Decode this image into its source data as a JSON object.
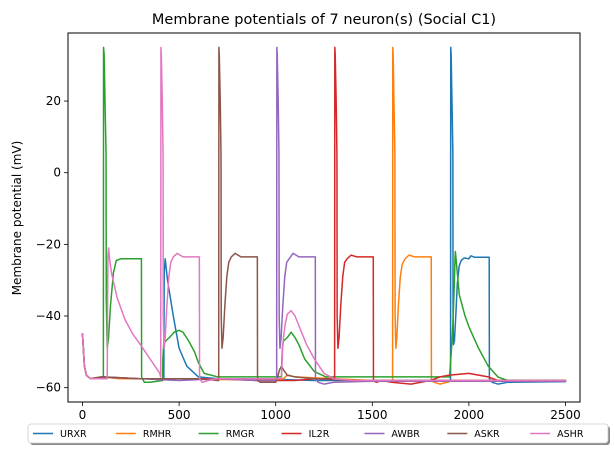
{
  "chart_data": {
    "type": "line",
    "title": "Membrane potentials of 7 neuron(s) (Social C1)",
    "xlabel": "",
    "ylabel": "Membrane potential (mV)",
    "xlim": [
      -75,
      2575
    ],
    "ylim": [
      -64,
      39
    ],
    "x_ticks": [
      0,
      500,
      1000,
      1500,
      2000,
      2500
    ],
    "y_ticks": [
      -60,
      -40,
      -20,
      0,
      20
    ],
    "legend_position": "below",
    "series": [
      {
        "name": "URXR",
        "color": "#1f77b4",
        "points": [
          [
            0,
            -45
          ],
          [
            10,
            -54
          ],
          [
            20,
            -56.5
          ],
          [
            40,
            -57.5
          ],
          [
            60,
            -57.5
          ],
          [
            100,
            -57
          ],
          [
            200,
            -57.5
          ],
          [
            400,
            -57.5
          ],
          [
            421,
            -57.5
          ],
          [
            423,
            -28
          ],
          [
            428,
            -24
          ],
          [
            440,
            -30
          ],
          [
            470,
            -40
          ],
          [
            500,
            -49
          ],
          [
            540,
            -54
          ],
          [
            600,
            -57
          ],
          [
            700,
            -57.5
          ],
          [
            900,
            -57.5
          ],
          [
            1200,
            -58
          ],
          [
            1600,
            -58
          ],
          [
            1900,
            -58
          ],
          [
            1905,
            -58
          ],
          [
            1906,
            35
          ],
          [
            1908,
            33
          ],
          [
            1914,
            15
          ],
          [
            1917,
            5
          ],
          [
            1918,
            -40
          ],
          [
            1920,
            -48
          ],
          [
            1925,
            -47
          ],
          [
            1932,
            -40
          ],
          [
            1940,
            -31
          ],
          [
            1950,
            -26
          ],
          [
            1960,
            -24.5
          ],
          [
            1975,
            -23.8
          ],
          [
            2000,
            -24
          ],
          [
            2010,
            -23.2
          ],
          [
            2030,
            -23.6
          ],
          [
            2105,
            -23.6
          ],
          [
            2106,
            -57.5
          ],
          [
            2120,
            -58.5
          ],
          [
            2150,
            -59
          ],
          [
            2200,
            -58.5
          ],
          [
            2500,
            -58.3
          ]
        ]
      },
      {
        "name": "RMHR",
        "color": "#ff7f0e",
        "points": [
          [
            0,
            -45
          ],
          [
            10,
            -54
          ],
          [
            20,
            -56.5
          ],
          [
            40,
            -57.5
          ],
          [
            100,
            -57
          ],
          [
            200,
            -57.5
          ],
          [
            500,
            -57.5
          ],
          [
            1000,
            -58
          ],
          [
            1040,
            -57.5
          ],
          [
            1060,
            -56.5
          ],
          [
            1100,
            -57
          ],
          [
            1300,
            -57.5
          ],
          [
            1500,
            -58
          ],
          [
            1600,
            -58
          ],
          [
            1605,
            -58
          ],
          [
            1606,
            35
          ],
          [
            1608,
            33
          ],
          [
            1612,
            20
          ],
          [
            1617,
            5
          ],
          [
            1618,
            -40
          ],
          [
            1622,
            -49
          ],
          [
            1627,
            -46
          ],
          [
            1635,
            -37
          ],
          [
            1645,
            -29
          ],
          [
            1655,
            -25.5
          ],
          [
            1670,
            -24
          ],
          [
            1690,
            -23
          ],
          [
            1720,
            -23.5
          ],
          [
            1805,
            -23.5
          ],
          [
            1806,
            -58
          ],
          [
            1820,
            -58.5
          ],
          [
            1850,
            -59
          ],
          [
            1920,
            -58
          ],
          [
            2000,
            -58
          ],
          [
            2500,
            -58
          ]
        ]
      },
      {
        "name": "RMGR",
        "color": "#2ca02c",
        "points": [
          [
            0,
            -45
          ],
          [
            10,
            -54
          ],
          [
            20,
            -56.5
          ],
          [
            40,
            -57.5
          ],
          [
            80,
            -57.5
          ],
          [
            108,
            -57.5
          ],
          [
            109,
            35
          ],
          [
            112,
            33
          ],
          [
            118,
            16
          ],
          [
            122,
            5
          ],
          [
            123,
            -35
          ],
          [
            128,
            -49
          ],
          [
            135,
            -46
          ],
          [
            145,
            -37
          ],
          [
            160,
            -28
          ],
          [
            175,
            -24.5
          ],
          [
            200,
            -24
          ],
          [
            240,
            -24
          ],
          [
            305,
            -24
          ],
          [
            306,
            -57
          ],
          [
            320,
            -58.5
          ],
          [
            350,
            -58.5
          ],
          [
            415,
            -58
          ],
          [
            416,
            -52
          ],
          [
            420,
            -48
          ],
          [
            430,
            -47
          ],
          [
            450,
            -46
          ],
          [
            475,
            -44.5
          ],
          [
            500,
            -44
          ],
          [
            520,
            -44.5
          ],
          [
            550,
            -47
          ],
          [
            580,
            -50
          ],
          [
            600,
            -53
          ],
          [
            630,
            -56
          ],
          [
            700,
            -57
          ],
          [
            900,
            -57
          ],
          [
            1000,
            -57
          ],
          [
            1030,
            -57
          ],
          [
            1032,
            -52
          ],
          [
            1036,
            -48
          ],
          [
            1040,
            -47
          ],
          [
            1060,
            -46
          ],
          [
            1080,
            -44.5
          ],
          [
            1100,
            -46
          ],
          [
            1120,
            -48
          ],
          [
            1150,
            -52
          ],
          [
            1200,
            -55.5
          ],
          [
            1260,
            -57
          ],
          [
            1300,
            -57
          ],
          [
            1330,
            -57
          ],
          [
            1400,
            -57
          ],
          [
            1600,
            -57
          ],
          [
            1700,
            -57
          ],
          [
            1800,
            -57
          ],
          [
            1900,
            -57
          ],
          [
            1915,
            -45
          ],
          [
            1920,
            -38
          ],
          [
            1925,
            -30
          ],
          [
            1928,
            -24
          ],
          [
            1930,
            -22
          ],
          [
            1935,
            -25
          ],
          [
            1950,
            -34
          ],
          [
            1980,
            -40
          ],
          [
            2000,
            -43
          ],
          [
            2050,
            -49
          ],
          [
            2100,
            -54
          ],
          [
            2150,
            -57
          ],
          [
            2200,
            -58
          ],
          [
            2500,
            -58
          ]
        ]
      },
      {
        "name": "IL2R",
        "color": "#d62728",
        "points": [
          [
            0,
            -45
          ],
          [
            10,
            -54
          ],
          [
            20,
            -56.5
          ],
          [
            40,
            -57.5
          ],
          [
            100,
            -57
          ],
          [
            300,
            -57.5
          ],
          [
            500,
            -57.5
          ],
          [
            700,
            -57.5
          ],
          [
            900,
            -58
          ],
          [
            1000,
            -58
          ],
          [
            1100,
            -58
          ],
          [
            1200,
            -57.5
          ],
          [
            1300,
            -57.5
          ],
          [
            1305,
            -57.5
          ],
          [
            1306,
            35
          ],
          [
            1308,
            33
          ],
          [
            1313,
            20
          ],
          [
            1317,
            5
          ],
          [
            1318,
            -40
          ],
          [
            1322,
            -49
          ],
          [
            1328,
            -46
          ],
          [
            1337,
            -37
          ],
          [
            1347,
            -29
          ],
          [
            1357,
            -25
          ],
          [
            1370,
            -24
          ],
          [
            1390,
            -23
          ],
          [
            1420,
            -23.5
          ],
          [
            1505,
            -23.5
          ],
          [
            1506,
            -58
          ],
          [
            1520,
            -58.5
          ],
          [
            1550,
            -58
          ],
          [
            1600,
            -58.5
          ],
          [
            1700,
            -59
          ],
          [
            1800,
            -58
          ],
          [
            1850,
            -57
          ],
          [
            1900,
            -56.5
          ],
          [
            2000,
            -56
          ],
          [
            2050,
            -56.5
          ],
          [
            2100,
            -57
          ],
          [
            2150,
            -58
          ],
          [
            2500,
            -58
          ]
        ]
      },
      {
        "name": "AWBR",
        "color": "#9467bd",
        "points": [
          [
            0,
            -45
          ],
          [
            10,
            -54
          ],
          [
            20,
            -56.5
          ],
          [
            40,
            -57.5
          ],
          [
            100,
            -57
          ],
          [
            300,
            -57.5
          ],
          [
            500,
            -58
          ],
          [
            700,
            -57.5
          ],
          [
            900,
            -58
          ],
          [
            1000,
            -58
          ],
          [
            1005,
            -58
          ],
          [
            1006,
            35
          ],
          [
            1008,
            33
          ],
          [
            1013,
            20
          ],
          [
            1017,
            5
          ],
          [
            1018,
            -40
          ],
          [
            1022,
            -49
          ],
          [
            1028,
            -46
          ],
          [
            1037,
            -37
          ],
          [
            1047,
            -29
          ],
          [
            1057,
            -25
          ],
          [
            1070,
            -24
          ],
          [
            1090,
            -22.5
          ],
          [
            1120,
            -23.5
          ],
          [
            1205,
            -23.5
          ],
          [
            1206,
            -57.5
          ],
          [
            1220,
            -58.5
          ],
          [
            1250,
            -59
          ],
          [
            1300,
            -58.5
          ],
          [
            1500,
            -58.2
          ],
          [
            2500,
            -58.2
          ]
        ]
      },
      {
        "name": "ASKR",
        "color": "#8c564b",
        "points": [
          [
            0,
            -45
          ],
          [
            10,
            -54
          ],
          [
            20,
            -56.5
          ],
          [
            40,
            -57.5
          ],
          [
            100,
            -57
          ],
          [
            300,
            -57.5
          ],
          [
            500,
            -57.5
          ],
          [
            600,
            -57.5
          ],
          [
            700,
            -58
          ],
          [
            705,
            -58
          ],
          [
            706,
            35
          ],
          [
            708,
            33
          ],
          [
            713,
            20
          ],
          [
            717,
            5
          ],
          [
            718,
            -40
          ],
          [
            722,
            -49
          ],
          [
            728,
            -46
          ],
          [
            737,
            -37
          ],
          [
            747,
            -29
          ],
          [
            757,
            -25
          ],
          [
            770,
            -23.5
          ],
          [
            790,
            -22.5
          ],
          [
            820,
            -23.5
          ],
          [
            905,
            -23.5
          ],
          [
            906,
            -58
          ],
          [
            920,
            -58.5
          ],
          [
            950,
            -58.5
          ],
          [
            1000,
            -58.5
          ],
          [
            1010,
            -57
          ],
          [
            1020,
            -55
          ],
          [
            1030,
            -54
          ],
          [
            1040,
            -55
          ],
          [
            1060,
            -56.5
          ],
          [
            1100,
            -57
          ],
          [
            1200,
            -57.5
          ],
          [
            1400,
            -58
          ],
          [
            1700,
            -58
          ],
          [
            2500,
            -58
          ]
        ]
      },
      {
        "name": "ASHR",
        "color": "#e377c2",
        "points": [
          [
            0,
            -45
          ],
          [
            10,
            -54
          ],
          [
            20,
            -56.5
          ],
          [
            40,
            -57.5
          ],
          [
            60,
            -57.5
          ],
          [
            100,
            -57.5
          ],
          [
            128,
            -57.5
          ],
          [
            130,
            -35
          ],
          [
            132,
            -23
          ],
          [
            135,
            -21
          ],
          [
            140,
            -24
          ],
          [
            150,
            -28
          ],
          [
            180,
            -35
          ],
          [
            220,
            -41
          ],
          [
            260,
            -45
          ],
          [
            300,
            -48
          ],
          [
            350,
            -52
          ],
          [
            400,
            -56
          ],
          [
            404,
            -57
          ],
          [
            405,
            -57
          ],
          [
            406,
            35
          ],
          [
            408,
            33
          ],
          [
            413,
            20
          ],
          [
            417,
            5
          ],
          [
            418,
            -40
          ],
          [
            422,
            -49
          ],
          [
            428,
            -46
          ],
          [
            437,
            -37
          ],
          [
            447,
            -29
          ],
          [
            457,
            -25
          ],
          [
            470,
            -23.5
          ],
          [
            490,
            -22.5
          ],
          [
            520,
            -23.5
          ],
          [
            605,
            -23.5
          ],
          [
            606,
            -57.5
          ],
          [
            620,
            -58.5
          ],
          [
            650,
            -58
          ],
          [
            700,
            -57.5
          ],
          [
            900,
            -57.5
          ],
          [
            1000,
            -57.5
          ],
          [
            1030,
            -57.5
          ],
          [
            1035,
            -50
          ],
          [
            1040,
            -46
          ],
          [
            1050,
            -42
          ],
          [
            1060,
            -39.5
          ],
          [
            1080,
            -38.5
          ],
          [
            1100,
            -40
          ],
          [
            1130,
            -44
          ],
          [
            1160,
            -48
          ],
          [
            1200,
            -52
          ],
          [
            1250,
            -56
          ],
          [
            1300,
            -57.5
          ],
          [
            1400,
            -58
          ],
          [
            1600,
            -58
          ],
          [
            2500,
            -58
          ]
        ]
      }
    ]
  }
}
